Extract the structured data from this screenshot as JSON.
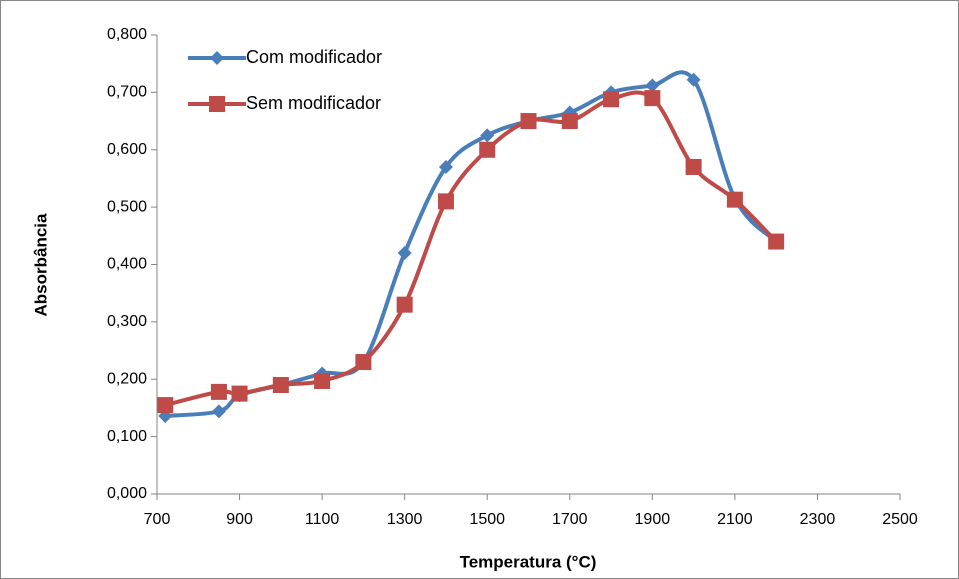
{
  "chart_data": {
    "type": "line",
    "smooth": true,
    "xlabel": "Temperatura (°C)",
    "ylabel": "Absorbância",
    "x": [
      720,
      850,
      900,
      1000,
      1100,
      1200,
      1300,
      1400,
      1500,
      1600,
      1700,
      1800,
      1900,
      2000,
      2100,
      2200
    ],
    "series": [
      {
        "name": "Com modificador",
        "color": "#4a7ebb",
        "marker": "diamond",
        "values": [
          0.136,
          0.144,
          0.172,
          0.19,
          0.21,
          0.23,
          0.42,
          0.57,
          0.625,
          0.65,
          0.665,
          0.7,
          0.712,
          0.722,
          0.515,
          0.44
        ]
      },
      {
        "name": "Sem modificador",
        "color": "#be4b48",
        "marker": "square",
        "values": [
          0.155,
          0.178,
          0.175,
          0.19,
          0.197,
          0.23,
          0.33,
          0.51,
          0.6,
          0.65,
          0.65,
          0.688,
          0.69,
          0.57,
          0.513,
          0.44
        ]
      }
    ],
    "xlim": [
      700,
      2500
    ],
    "xticks": [
      700,
      900,
      1100,
      1300,
      1500,
      1700,
      1900,
      2100,
      2300,
      2500
    ],
    "ylim": [
      0,
      0.8
    ],
    "yticks": [
      {
        "value": 0,
        "label": "0,000"
      },
      {
        "value": 0.1,
        "label": "0,100"
      },
      {
        "value": 0.2,
        "label": "0,200"
      },
      {
        "value": 0.3,
        "label": "0,300"
      },
      {
        "value": 0.4,
        "label": "0,400"
      },
      {
        "value": 0.5,
        "label": "0,500"
      },
      {
        "value": 0.6,
        "label": "0,600"
      },
      {
        "value": 0.7,
        "label": "0,700"
      },
      {
        "value": 0.8,
        "label": "0,800"
      }
    ],
    "legend": "top-left",
    "grid": false
  }
}
